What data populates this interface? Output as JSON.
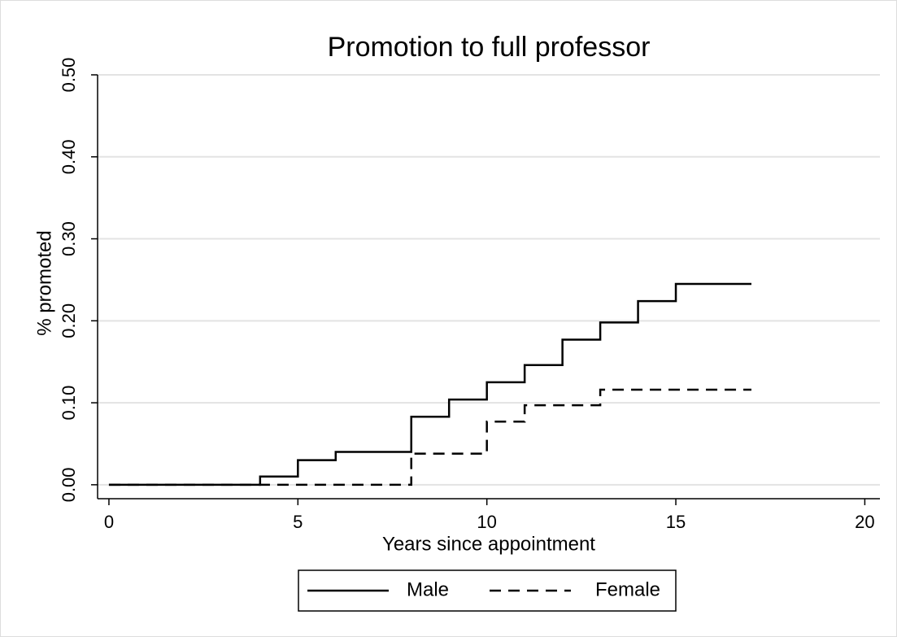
{
  "chart_data": {
    "type": "line",
    "drawstyle": "steps-post",
    "title": "Promotion to full professor",
    "x_label": "Years since appointment",
    "y_label": "% promoted",
    "xlim": [
      -0.3,
      20.4
    ],
    "ylim": [
      -0.017,
      0.5
    ],
    "xticks": [
      0,
      5,
      10,
      15,
      20
    ],
    "yticks": [
      {
        "value": 0,
        "label": "0.00"
      },
      {
        "value": 0.1,
        "label": "0.10"
      },
      {
        "value": 0.2,
        "label": "0.20"
      },
      {
        "value": 0.3,
        "label": "0.30"
      },
      {
        "value": 0.4,
        "label": "0.40"
      },
      {
        "value": 0.5,
        "label": "0.50"
      }
    ],
    "grid": true,
    "legend": "bottom",
    "series": [
      {
        "name": "Male",
        "color": "#000000",
        "dash": "solid",
        "x": [
          0,
          4,
          5,
          6,
          8,
          9,
          10,
          11,
          12,
          13,
          14,
          15,
          17
        ],
        "values": [
          0,
          0.01,
          0.03,
          0.04,
          0.083,
          0.104,
          0.125,
          0.146,
          0.177,
          0.198,
          0.224,
          0.245,
          0.245
        ]
      },
      {
        "name": "Female",
        "color": "#000000",
        "dash": "dashed",
        "x": [
          0,
          8,
          10,
          11,
          13,
          17
        ],
        "values": [
          0,
          0.038,
          0.077,
          0.097,
          0.116,
          0.116
        ]
      }
    ]
  }
}
